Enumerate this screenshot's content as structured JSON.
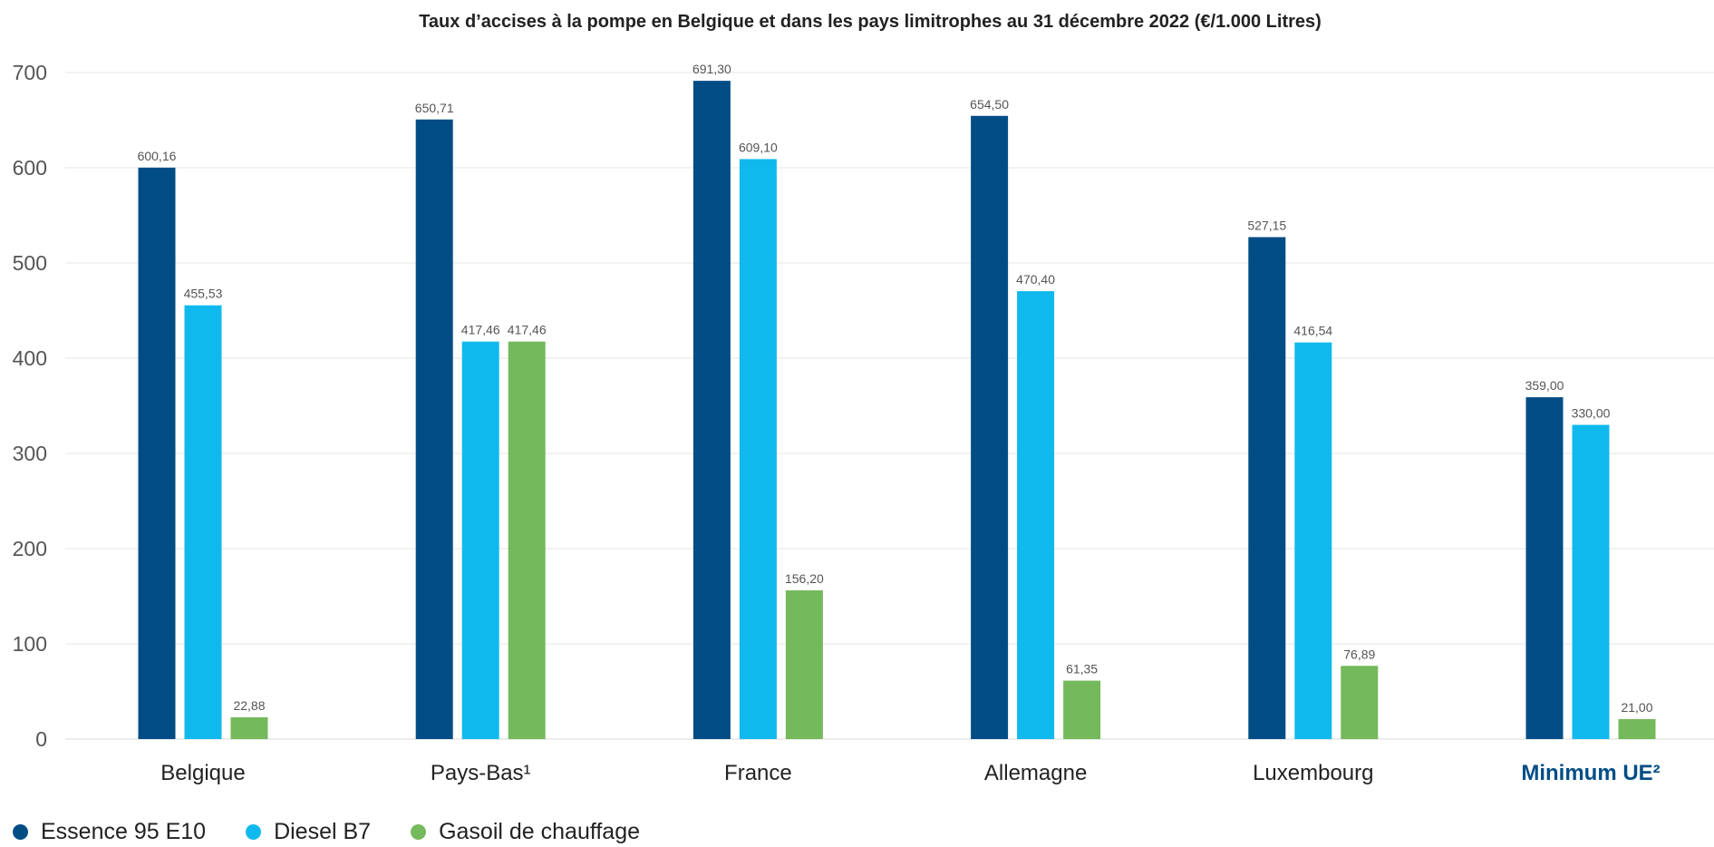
{
  "chart_data": {
    "type": "bar",
    "title": "Taux d’accises à la pompe en Belgique et dans les pays limitrophes au 31 décembre 2022 (€/1.000 Litres)",
    "xlabel": "",
    "ylabel": "",
    "ylim": [
      0,
      700
    ],
    "yticks": [
      "0",
      "100",
      "200",
      "300",
      "400",
      "500",
      "600",
      "700"
    ],
    "grid": true,
    "legend_position": "bottom-left",
    "categories": [
      "Belgique",
      "Pays-Bas¹",
      "France",
      "Allemagne",
      "Luxembourg",
      "Minimum UE²"
    ],
    "highlight_category": "Minimum UE²",
    "highlight_color": "#004d85",
    "series": [
      {
        "name": "Essence 95 E10",
        "color": "#004d85",
        "values": [
          600.16,
          650.71,
          691.3,
          654.5,
          527.15,
          359.0
        ],
        "labels": [
          "600,16",
          "650,71",
          "691,30",
          "654,50",
          "527,15",
          "359,00"
        ]
      },
      {
        "name": "Diesel B7",
        "color": "#10b9ed",
        "values": [
          455.53,
          417.46,
          609.1,
          470.4,
          416.54,
          330.0
        ],
        "labels": [
          "455,53",
          "417,46",
          "609,10",
          "470,40",
          "416,54",
          "330,00"
        ]
      },
      {
        "name": "Gasoil de chauffage",
        "color": "#74b95b",
        "values": [
          22.88,
          417.46,
          156.2,
          61.35,
          76.89,
          21.0
        ],
        "labels": [
          "22,88",
          "417,46",
          "156,20",
          "61,35",
          "76,89",
          "21,00"
        ]
      }
    ]
  }
}
